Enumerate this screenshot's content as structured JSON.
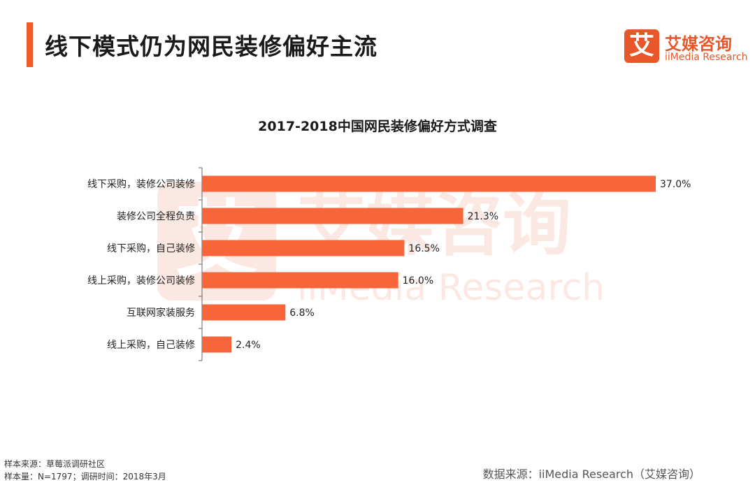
{
  "header": {
    "title": "线下模式仍为网民装修偏好主流",
    "accent_color": "#f05a28"
  },
  "logo": {
    "mark_char": "艾",
    "name": "艾媒咨询",
    "english": "iiMedia Research",
    "color": "#e8572a"
  },
  "chart_data": {
    "type": "bar",
    "orientation": "horizontal",
    "title": "2017-2018中国网民装修偏好方式调查",
    "categories": [
      "线下采购，装修公司装修",
      "装修公司全程负责",
      "线下采购，自己装修",
      "线上采购，装修公司装修",
      "互联网家装服务",
      "线上采购，自己装修"
    ],
    "values": [
      37.0,
      21.3,
      16.5,
      16.0,
      6.8,
      2.4
    ],
    "value_labels": [
      "37.0%",
      "21.3%",
      "16.5%",
      "16.0%",
      "6.8%",
      "2.4%"
    ],
    "unit": "%",
    "xlim": [
      0,
      37.0
    ],
    "bar_color": "#f7653a",
    "grid": false,
    "legend": "none"
  },
  "footer": {
    "sample_source": "样本来源：草莓派调研社区",
    "sample_size": "样本量：N=1797；调研时间：2018年3月",
    "data_source": "数据来源：iiMedia Research（艾媒咨询）"
  }
}
